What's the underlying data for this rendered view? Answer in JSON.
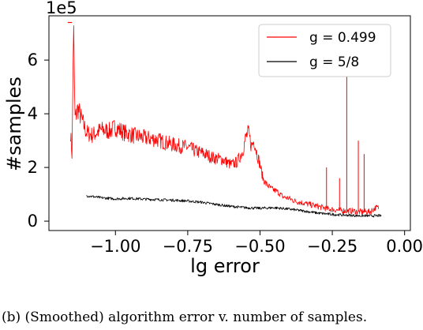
{
  "caption": "(b) (Smoothed) algorithm error v. number of samples.",
  "chart_data": {
    "type": "line",
    "title": "",
    "xlabel": "lg error",
    "ylabel": "#samples",
    "y_offset_label": "1e5",
    "xlim": [
      -1.23,
      0.02
    ],
    "ylim": [
      -0.35,
      7.65
    ],
    "x_ticks": [
      -1.0,
      -0.75,
      -0.5,
      -0.25,
      0.0
    ],
    "x_tick_labels": [
      "−1.00",
      "−0.75",
      "−0.50",
      "−0.25",
      "0.00"
    ],
    "y_ticks": [
      0,
      2,
      4,
      6
    ],
    "y_tick_labels": [
      "0",
      "2",
      "4",
      "6"
    ],
    "grid": false,
    "legend_position": "upper right",
    "series": [
      {
        "name": "g = 0.499",
        "color": "#ff0000",
        "x": [
          -1.155,
          -1.15,
          -1.145,
          -1.14,
          -1.13,
          -1.12,
          -1.1,
          -1.08,
          -1.05,
          -1.02,
          -1.0,
          -0.97,
          -0.94,
          -0.9,
          -0.86,
          -0.82,
          -0.78,
          -0.75,
          -0.72,
          -0.69,
          -0.66,
          -0.63,
          -0.6,
          -0.58,
          -0.56,
          -0.55,
          -0.54,
          -0.53,
          -0.52,
          -0.51,
          -0.5,
          -0.49,
          -0.48,
          -0.46,
          -0.44,
          -0.42,
          -0.4,
          -0.38,
          -0.36,
          -0.34,
          -0.32,
          -0.3,
          -0.28,
          -0.26,
          -0.24,
          -0.22,
          -0.2,
          -0.18,
          -0.16,
          -0.14,
          -0.12,
          -0.1,
          -0.09
        ],
        "y": [
          3.3,
          2.4,
          7.4,
          3.8,
          4.2,
          3.9,
          3.3,
          3.2,
          3.4,
          3.35,
          3.5,
          3.3,
          3.2,
          3.1,
          3.05,
          2.9,
          2.8,
          2.75,
          2.6,
          2.5,
          2.35,
          2.3,
          2.1,
          2.2,
          2.6,
          3.1,
          3.3,
          2.8,
          3.0,
          2.5,
          2.1,
          1.6,
          1.4,
          1.2,
          1.1,
          0.9,
          0.85,
          0.75,
          0.7,
          0.65,
          0.6,
          0.55,
          0.5,
          0.45,
          0.42,
          0.4,
          0.38,
          0.38,
          0.35,
          0.35,
          0.35,
          0.5,
          0.5
        ]
      },
      {
        "name": "g = 5/8",
        "color": "#000000",
        "x": [
          -1.1,
          -1.05,
          -1.0,
          -0.95,
          -0.9,
          -0.85,
          -0.8,
          -0.75,
          -0.7,
          -0.65,
          -0.6,
          -0.55,
          -0.5,
          -0.45,
          -0.4,
          -0.35,
          -0.3,
          -0.25,
          -0.2,
          -0.15,
          -0.12,
          -0.1,
          -0.08
        ],
        "y": [
          0.95,
          0.87,
          0.83,
          0.85,
          0.82,
          0.8,
          0.78,
          0.75,
          0.7,
          0.62,
          0.55,
          0.5,
          0.48,
          0.5,
          0.45,
          0.38,
          0.3,
          0.25,
          0.22,
          0.2,
          0.2,
          0.2,
          0.2
        ]
      }
    ]
  }
}
